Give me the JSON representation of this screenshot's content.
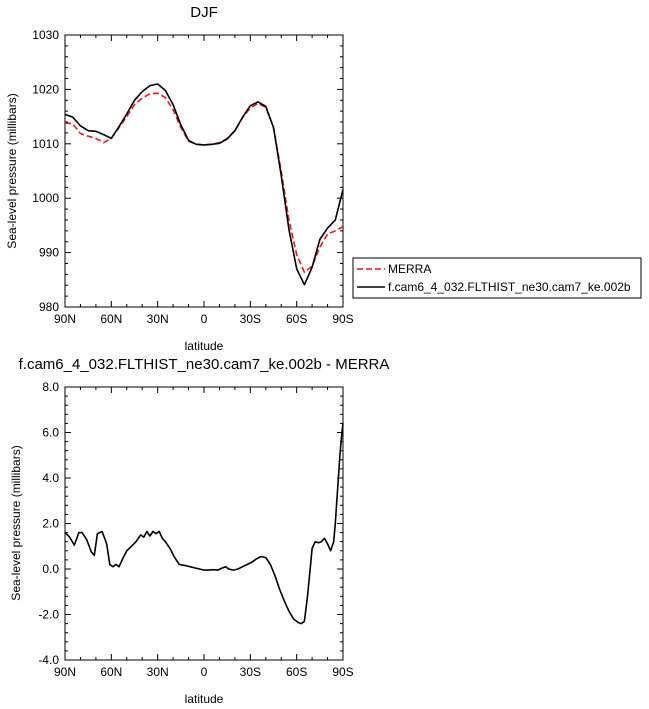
{
  "chart_data": [
    {
      "type": "line",
      "title": "DJF",
      "xlabel": "latitude",
      "ylabel": "Sea-level pressure (millibars)",
      "xlim": [
        90,
        -90
      ],
      "ylim": [
        980,
        1030
      ],
      "x_ticks": [
        90,
        60,
        30,
        0,
        -30,
        -60,
        -90
      ],
      "x_tick_labels": [
        "90N",
        "60N",
        "30N",
        "0",
        "30S",
        "60S",
        "90S"
      ],
      "y_ticks": [
        980,
        990,
        1000,
        1010,
        1020,
        1030
      ],
      "y_tick_labels": [
        "980",
        "990",
        "1000",
        "1010",
        "1020",
        "1030"
      ],
      "legend": "right",
      "series": [
        {
          "name": "MERRA",
          "color": "#e41a1c",
          "dash": "dashed",
          "points": [
            [
              90,
              1013.8
            ],
            [
              85,
              1013.7
            ],
            [
              80,
              1011.9
            ],
            [
              75,
              1011.4
            ],
            [
              70,
              1011.0
            ],
            [
              65,
              1010.2
            ],
            [
              60,
              1011.0
            ],
            [
              55,
              1013.0
            ],
            [
              50,
              1015.0
            ],
            [
              45,
              1017.2
            ],
            [
              40,
              1018.4
            ],
            [
              35,
              1019.2
            ],
            [
              30,
              1019.3
            ],
            [
              25,
              1018.5
            ],
            [
              20,
              1016.3
            ],
            [
              15,
              1013.0
            ],
            [
              10,
              1010.5
            ],
            [
              5,
              1009.9
            ],
            [
              0,
              1009.8
            ],
            [
              -5,
              1009.9
            ],
            [
              -10,
              1010.2
            ],
            [
              -15,
              1011.0
            ],
            [
              -20,
              1012.4
            ],
            [
              -25,
              1014.8
            ],
            [
              -30,
              1016.6
            ],
            [
              -35,
              1017.4
            ],
            [
              -40,
              1016.7
            ],
            [
              -45,
              1013.0
            ],
            [
              -50,
              1005.0
            ],
            [
              -55,
              996.0
            ],
            [
              -60,
              989.6
            ],
            [
              -65,
              986.4
            ],
            [
              -70,
              987.5
            ],
            [
              -75,
              991.0
            ],
            [
              -80,
              993.4
            ],
            [
              -85,
              994.0
            ],
            [
              -90,
              994.8
            ]
          ]
        },
        {
          "name": "f.cam6_4_032.FLTHIST_ne30.cam7_ke.002b",
          "color": "#000000",
          "dash": "solid",
          "points": [
            [
              90,
              1015.4
            ],
            [
              85,
              1014.9
            ],
            [
              80,
              1013.3
            ],
            [
              75,
              1012.4
            ],
            [
              70,
              1012.3
            ],
            [
              65,
              1011.7
            ],
            [
              60,
              1011.0
            ],
            [
              55,
              1013.2
            ],
            [
              50,
              1015.5
            ],
            [
              45,
              1018.0
            ],
            [
              40,
              1019.6
            ],
            [
              35,
              1020.7
            ],
            [
              30,
              1021.0
            ],
            [
              25,
              1019.8
            ],
            [
              20,
              1017.2
            ],
            [
              15,
              1013.5
            ],
            [
              10,
              1010.6
            ],
            [
              5,
              1009.9
            ],
            [
              0,
              1009.8
            ],
            [
              -5,
              1009.9
            ],
            [
              -10,
              1010.1
            ],
            [
              -15,
              1010.9
            ],
            [
              -20,
              1012.4
            ],
            [
              -25,
              1014.9
            ],
            [
              -30,
              1017.0
            ],
            [
              -35,
              1017.7
            ],
            [
              -40,
              1016.9
            ],
            [
              -45,
              1013.0
            ],
            [
              -50,
              1004.2
            ],
            [
              -55,
              994.3
            ],
            [
              -60,
              987.0
            ],
            [
              -65,
              984.1
            ],
            [
              -70,
              987.3
            ],
            [
              -75,
              992.4
            ],
            [
              -80,
              994.5
            ],
            [
              -85,
              996.0
            ],
            [
              -90,
              1001.6
            ]
          ]
        }
      ]
    },
    {
      "type": "line",
      "title": "f.cam6_4_032.FLTHIST_ne30.cam7_ke.002b - MERRA",
      "xlabel": "latitude",
      "ylabel": "Sea-level pressure (millibars)",
      "xlim": [
        90,
        -90
      ],
      "ylim": [
        -4,
        8
      ],
      "x_ticks": [
        90,
        60,
        30,
        0,
        -30,
        -60,
        -90
      ],
      "x_tick_labels": [
        "90N",
        "60N",
        "30N",
        "0",
        "30S",
        "60S",
        "90S"
      ],
      "y_ticks": [
        -4,
        -2,
        0,
        2,
        4,
        6,
        8
      ],
      "y_tick_labels": [
        "-4.0",
        "-2.0",
        "0.0",
        "2.0",
        "4.0",
        "6.0",
        "8.0"
      ],
      "series": [
        {
          "color": "#000000",
          "dash": "solid",
          "points": [
            [
              90,
              1.6
            ],
            [
              87,
              1.4
            ],
            [
              84,
              1.05
            ],
            [
              81,
              1.6
            ],
            [
              79,
              1.6
            ],
            [
              76,
              1.3
            ],
            [
              73,
              0.75
            ],
            [
              71,
              0.6
            ],
            [
              69,
              1.55
            ],
            [
              66,
              1.65
            ],
            [
              63,
              1.1
            ],
            [
              61,
              0.2
            ],
            [
              59,
              0.1
            ],
            [
              57,
              0.2
            ],
            [
              55,
              0.1
            ],
            [
              53,
              0.4
            ],
            [
              50,
              0.8
            ],
            [
              47,
              1.0
            ],
            [
              44,
              1.2
            ],
            [
              41,
              1.5
            ],
            [
              39,
              1.4
            ],
            [
              37,
              1.65
            ],
            [
              35,
              1.45
            ],
            [
              33,
              1.65
            ],
            [
              31,
              1.55
            ],
            [
              29,
              1.65
            ],
            [
              27,
              1.35
            ],
            [
              25,
              1.2
            ],
            [
              22,
              0.9
            ],
            [
              19,
              0.5
            ],
            [
              16,
              0.2
            ],
            [
              12,
              0.15
            ],
            [
              9,
              0.1
            ],
            [
              6,
              0.05
            ],
            [
              3,
              0.0
            ],
            [
              0,
              -0.05
            ],
            [
              -3,
              -0.05
            ],
            [
              -6,
              -0.03
            ],
            [
              -9,
              -0.05
            ],
            [
              -12,
              0.05
            ],
            [
              -14,
              0.1
            ],
            [
              -16,
              0.0
            ],
            [
              -19,
              -0.05
            ],
            [
              -22,
              0.0
            ],
            [
              -25,
              0.1
            ],
            [
              -28,
              0.2
            ],
            [
              -31,
              0.3
            ],
            [
              -34,
              0.45
            ],
            [
              -37,
              0.55
            ],
            [
              -40,
              0.5
            ],
            [
              -43,
              0.2
            ],
            [
              -46,
              -0.3
            ],
            [
              -49,
              -0.9
            ],
            [
              -52,
              -1.4
            ],
            [
              -55,
              -1.85
            ],
            [
              -58,
              -2.2
            ],
            [
              -61,
              -2.35
            ],
            [
              -63,
              -2.4
            ],
            [
              -65,
              -2.3
            ],
            [
              -67,
              -1.2
            ],
            [
              -69,
              0.2
            ],
            [
              -70,
              0.9
            ],
            [
              -72,
              1.2
            ],
            [
              -74,
              1.15
            ],
            [
              -76,
              1.2
            ],
            [
              -78,
              1.35
            ],
            [
              -80,
              1.1
            ],
            [
              -82,
              0.8
            ],
            [
              -84,
              1.2
            ],
            [
              -85,
              2.0
            ],
            [
              -86,
              3.0
            ],
            [
              -87,
              4.0
            ],
            [
              -88,
              5.0
            ],
            [
              -89,
              5.8
            ],
            [
              -90,
              6.4
            ]
          ]
        }
      ]
    }
  ]
}
